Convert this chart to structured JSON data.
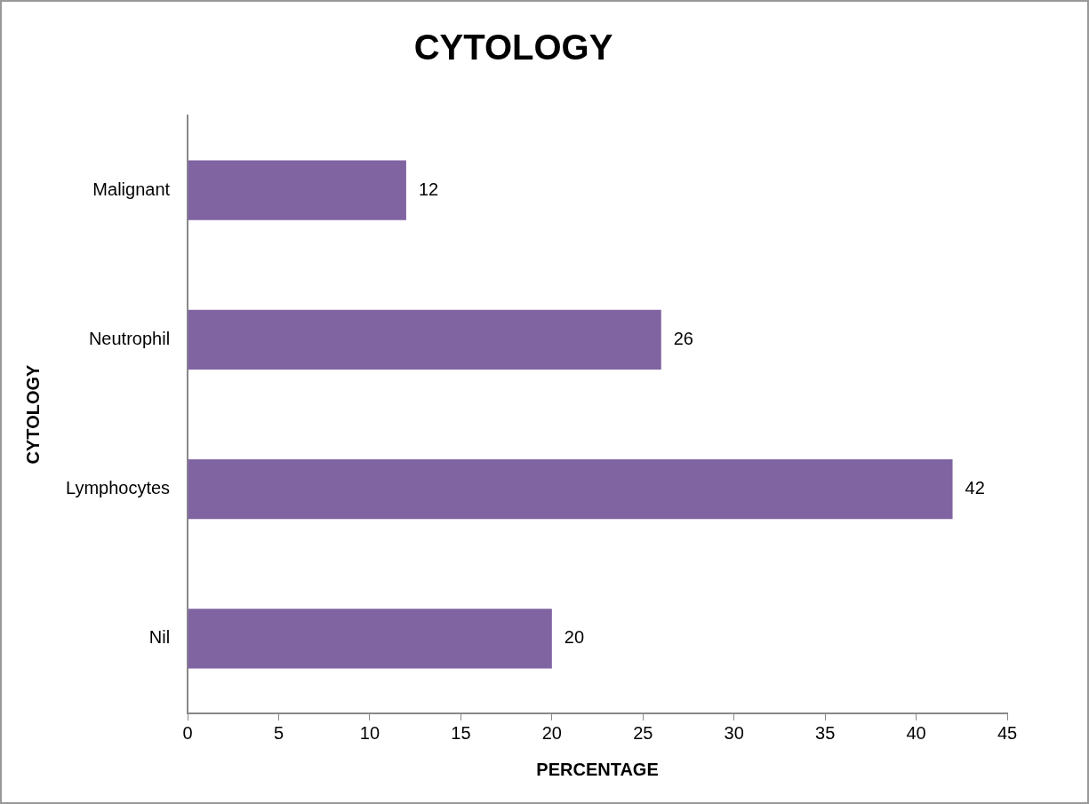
{
  "chart_data": {
    "type": "bar",
    "orientation": "horizontal",
    "title": "CYTOLOGY",
    "xlabel": "PERCENTAGE",
    "ylabel": "CYTOLOGY",
    "categories": [
      "Malignant",
      "Neutrophil",
      "Lymphocytes",
      "Nil"
    ],
    "values": [
      12,
      26,
      42,
      20
    ],
    "color": "#8064a2",
    "xlim": [
      0,
      45
    ],
    "xticks": [
      0,
      5,
      10,
      15,
      20,
      25,
      30,
      35,
      40,
      45
    ],
    "data_labels": true,
    "grid": false,
    "legend": false
  }
}
